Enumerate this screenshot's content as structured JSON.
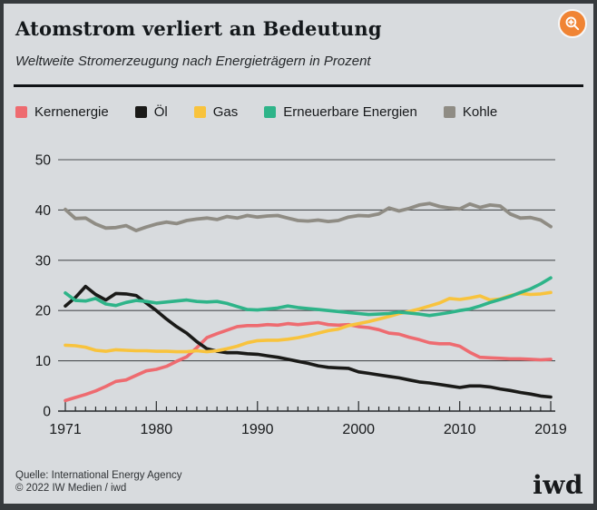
{
  "header": {
    "title": "Atomstrom verliert an Bedeutung",
    "subtitle": "Weltweite Stromerzeugung nach Energieträgern in Prozent",
    "zoom_button": {
      "icon": "magnifier-plus-icon",
      "color": "#f08434"
    }
  },
  "legend": {
    "items": [
      "Kernenergie",
      "Öl",
      "Gas",
      "Erneuerbare Energien",
      "Kohle"
    ]
  },
  "footer": {
    "source": "Quelle: International Energy Agency",
    "copyright": "© 2022 IW Medien / iwd",
    "logo": "iwd"
  },
  "colors": {
    "background": "#d8dbde",
    "frame": "#363a3d",
    "gridline": "#4c4f52",
    "axis": "#26292b",
    "accent_button": "#f08434"
  },
  "chart_data": {
    "type": "line",
    "title": "Atomstrom verliert an Bedeutung",
    "subtitle": "Weltweite Stromerzeugung nach Energieträgern in Prozent",
    "ylabel": "Prozent",
    "ylim": [
      0,
      50
    ],
    "yticks": [
      0,
      10,
      20,
      30,
      40,
      50
    ],
    "grid": "horizontal",
    "legend_position": "top",
    "xticks_labeled": [
      1971,
      1980,
      1990,
      2000,
      2010,
      2019
    ],
    "x": [
      1971,
      1972,
      1973,
      1974,
      1975,
      1976,
      1977,
      1978,
      1979,
      1980,
      1981,
      1982,
      1983,
      1984,
      1985,
      1986,
      1987,
      1988,
      1989,
      1990,
      1991,
      1992,
      1993,
      1994,
      1995,
      1996,
      1997,
      1998,
      1999,
      2000,
      2001,
      2002,
      2003,
      2004,
      2005,
      2006,
      2007,
      2008,
      2009,
      2010,
      2011,
      2012,
      2013,
      2014,
      2015,
      2016,
      2017,
      2018,
      2019
    ],
    "series": [
      {
        "name": "Kernenergie",
        "color": "#ee6b70",
        "values": [
          2.1,
          2.7,
          3.3,
          4.0,
          4.9,
          5.9,
          6.2,
          7.1,
          8.0,
          8.3,
          8.9,
          9.9,
          10.8,
          12.6,
          14.6,
          15.4,
          16.1,
          16.8,
          17.0,
          17.0,
          17.2,
          17.1,
          17.4,
          17.2,
          17.4,
          17.6,
          17.2,
          17.1,
          17.2,
          16.8,
          16.6,
          16.2,
          15.5,
          15.3,
          14.7,
          14.2,
          13.6,
          13.4,
          13.4,
          12.9,
          11.7,
          10.7,
          10.6,
          10.5,
          10.4,
          10.4,
          10.3,
          10.2,
          10.3
        ]
      },
      {
        "name": "Öl",
        "color": "#1a1a18",
        "values": [
          20.9,
          22.6,
          24.8,
          23.2,
          22.1,
          23.4,
          23.3,
          23.0,
          21.5,
          20.0,
          18.3,
          16.8,
          15.5,
          13.8,
          12.4,
          11.9,
          11.6,
          11.6,
          11.4,
          11.3,
          11.0,
          10.7,
          10.3,
          9.9,
          9.5,
          9.0,
          8.7,
          8.6,
          8.5,
          7.8,
          7.5,
          7.2,
          6.9,
          6.6,
          6.2,
          5.8,
          5.6,
          5.3,
          5.0,
          4.7,
          5.0,
          5.0,
          4.8,
          4.4,
          4.1,
          3.7,
          3.4,
          3.0,
          2.8
        ]
      },
      {
        "name": "Gas",
        "color": "#f8c33d",
        "values": [
          13.1,
          13.0,
          12.7,
          12.1,
          11.9,
          12.2,
          12.1,
          12.0,
          12.0,
          11.9,
          11.9,
          11.8,
          11.8,
          12.0,
          11.8,
          12.0,
          12.4,
          12.9,
          13.6,
          14.0,
          14.1,
          14.1,
          14.3,
          14.6,
          15.0,
          15.5,
          16.0,
          16.3,
          17.0,
          17.4,
          17.8,
          18.3,
          18.8,
          19.4,
          19.8,
          20.3,
          20.9,
          21.5,
          22.4,
          22.2,
          22.5,
          22.9,
          22.1,
          22.3,
          23.0,
          23.4,
          23.2,
          23.3,
          23.6
        ]
      },
      {
        "name": "Erneuerbare Energien",
        "color": "#2eb489",
        "values": [
          23.5,
          22.0,
          21.9,
          22.4,
          21.3,
          21.0,
          21.6,
          22.0,
          21.8,
          21.5,
          21.7,
          21.9,
          22.1,
          21.8,
          21.7,
          21.8,
          21.4,
          20.8,
          20.2,
          20.1,
          20.3,
          20.5,
          20.9,
          20.6,
          20.4,
          20.2,
          20.0,
          19.8,
          19.6,
          19.4,
          19.2,
          19.3,
          19.4,
          19.7,
          19.5,
          19.3,
          19.0,
          19.3,
          19.6,
          20.0,
          20.3,
          20.9,
          21.6,
          22.2,
          22.8,
          23.6,
          24.3,
          25.3,
          26.5
        ]
      },
      {
        "name": "Kohle",
        "color": "#8f8c84",
        "values": [
          40.1,
          38.3,
          38.4,
          37.2,
          36.4,
          36.5,
          36.9,
          35.9,
          36.6,
          37.2,
          37.6,
          37.3,
          37.9,
          38.2,
          38.4,
          38.1,
          38.7,
          38.4,
          38.9,
          38.6,
          38.8,
          38.9,
          38.4,
          37.9,
          37.8,
          38.0,
          37.7,
          37.9,
          38.6,
          38.9,
          38.8,
          39.2,
          40.4,
          39.8,
          40.3,
          41.0,
          41.3,
          40.7,
          40.4,
          40.2,
          41.2,
          40.5,
          41.0,
          40.8,
          39.2,
          38.4,
          38.5,
          38.0,
          36.7
        ]
      }
    ]
  }
}
